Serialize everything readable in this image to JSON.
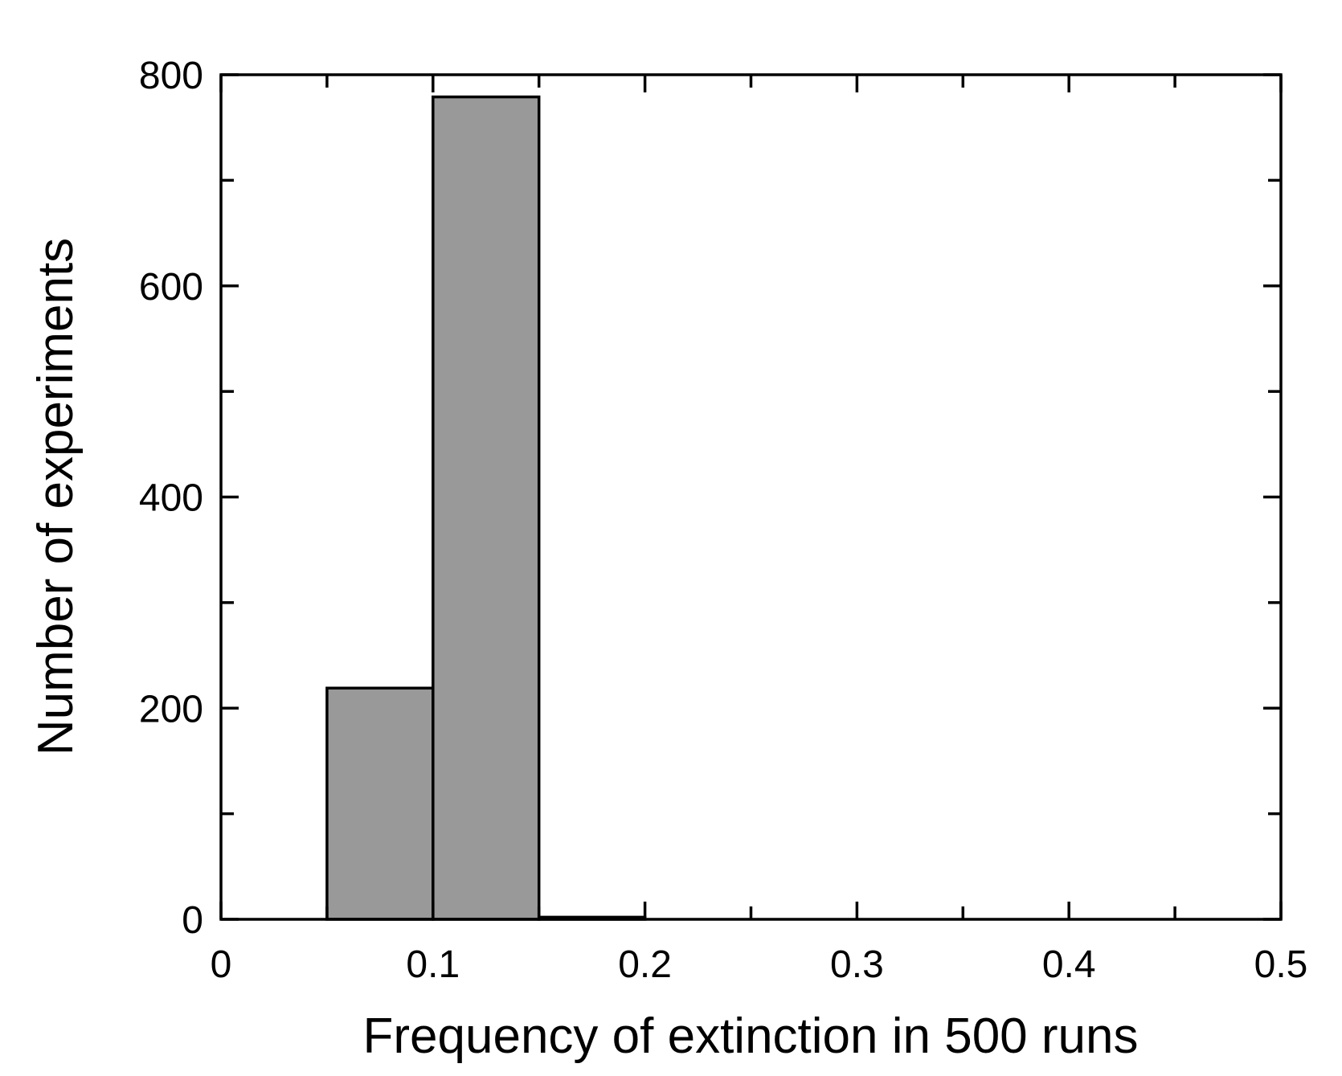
{
  "chart_data": {
    "type": "bar",
    "title": "",
    "xlabel": "Frequency of extinction in 500 runs",
    "ylabel": "Number of experiments",
    "xlim": [
      0,
      0.5
    ],
    "ylim": [
      0,
      800
    ],
    "xticks": [
      0,
      0.1,
      0.2,
      0.3,
      0.4,
      0.5
    ],
    "xtick_labels": [
      "0",
      "0.1",
      "0.2",
      "0.3",
      "0.4",
      "0.5"
    ],
    "xminor": [
      0.05,
      0.15,
      0.25,
      0.35,
      0.45
    ],
    "yticks": [
      0,
      200,
      400,
      600,
      800
    ],
    "ytick_labels": [
      "0",
      "200",
      "400",
      "600",
      "800"
    ],
    "yminor": [
      100,
      300,
      500,
      700
    ],
    "bin_edges": [
      [
        0.05,
        0.1
      ],
      [
        0.1,
        0.15
      ],
      [
        0.15,
        0.2
      ]
    ],
    "values": [
      219,
      779,
      2
    ],
    "bar_color": "#999999",
    "grid": false,
    "legend": "none"
  }
}
